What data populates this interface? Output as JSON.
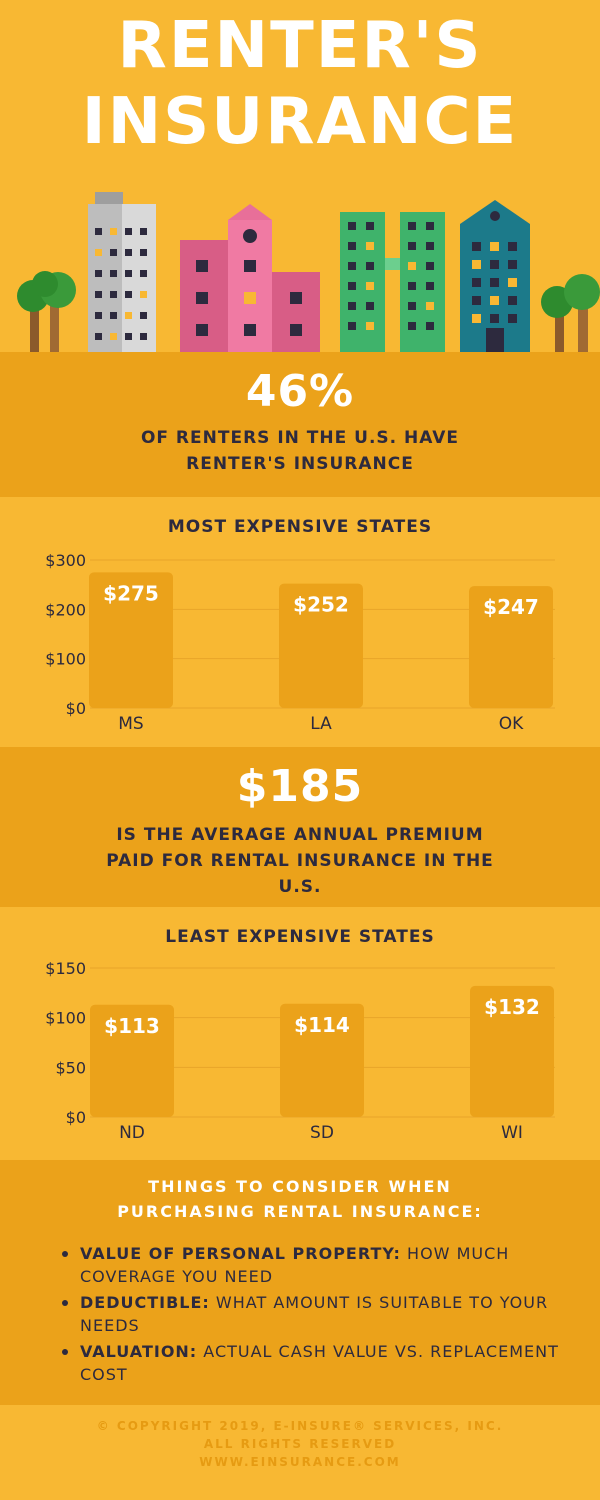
{
  "header": {
    "title_line1": "RENTER'S",
    "title_line2": "INSURANCE"
  },
  "stat1": {
    "value": "46%",
    "description": "OF RENTERS IN THE U.S. HAVE RENTER'S INSURANCE"
  },
  "stat2": {
    "value": "$185",
    "description": "IS THE AVERAGE ANNUAL PREMIUM PAID FOR RENTAL INSURANCE IN THE U.S."
  },
  "chart_data": [
    {
      "type": "bar",
      "title": "MOST EXPENSIVE STATES",
      "categories": [
        "MS",
        "LA",
        "OK"
      ],
      "values": [
        275,
        252,
        247
      ],
      "data_labels": [
        "$275",
        "$252",
        "$247"
      ],
      "yticks": [
        0,
        100,
        200,
        300
      ],
      "ytick_labels": [
        "$0",
        "$100",
        "$200",
        "$300"
      ],
      "ylim": [
        0,
        300
      ],
      "grid": true,
      "bar_color": "#eba21a"
    },
    {
      "type": "bar",
      "title": "LEAST EXPENSIVE STATES",
      "categories": [
        "ND",
        "SD",
        "WI"
      ],
      "values": [
        113,
        114,
        132
      ],
      "data_labels": [
        "$113",
        "$114",
        "$132"
      ],
      "yticks": [
        0,
        50,
        100,
        150
      ],
      "ytick_labels": [
        "$0",
        "$50",
        "$100",
        "$150"
      ],
      "ylim": [
        0,
        150
      ],
      "grid": true,
      "bar_color": "#eba21a"
    }
  ],
  "considerations": {
    "title": "THINGS TO CONSIDER WHEN PURCHASING RENTAL INSURANCE:",
    "items": [
      {
        "label": "VALUE OF PERSONAL PROPERTY:",
        "text": " HOW MUCH COVERAGE YOU NEED"
      },
      {
        "label": "DEDUCTIBLE:",
        "text": " WHAT AMOUNT IS SUITABLE TO YOUR NEEDS"
      },
      {
        "label": "VALUATION:",
        "text": " ACTUAL CASH VALUE VS. REPLACEMENT COST"
      }
    ]
  },
  "footer": {
    "line1": "© COPYRIGHT 2019, E-INSURE® SERVICES, INC.",
    "line2": "ALL RIGHTS RESERVED",
    "line3": "WWW.EINSURANCE.COM"
  },
  "colors": {
    "background": "#f8b833",
    "band": "#eba21a",
    "text_dark": "#2d2a3e",
    "white": "#ffffff"
  }
}
